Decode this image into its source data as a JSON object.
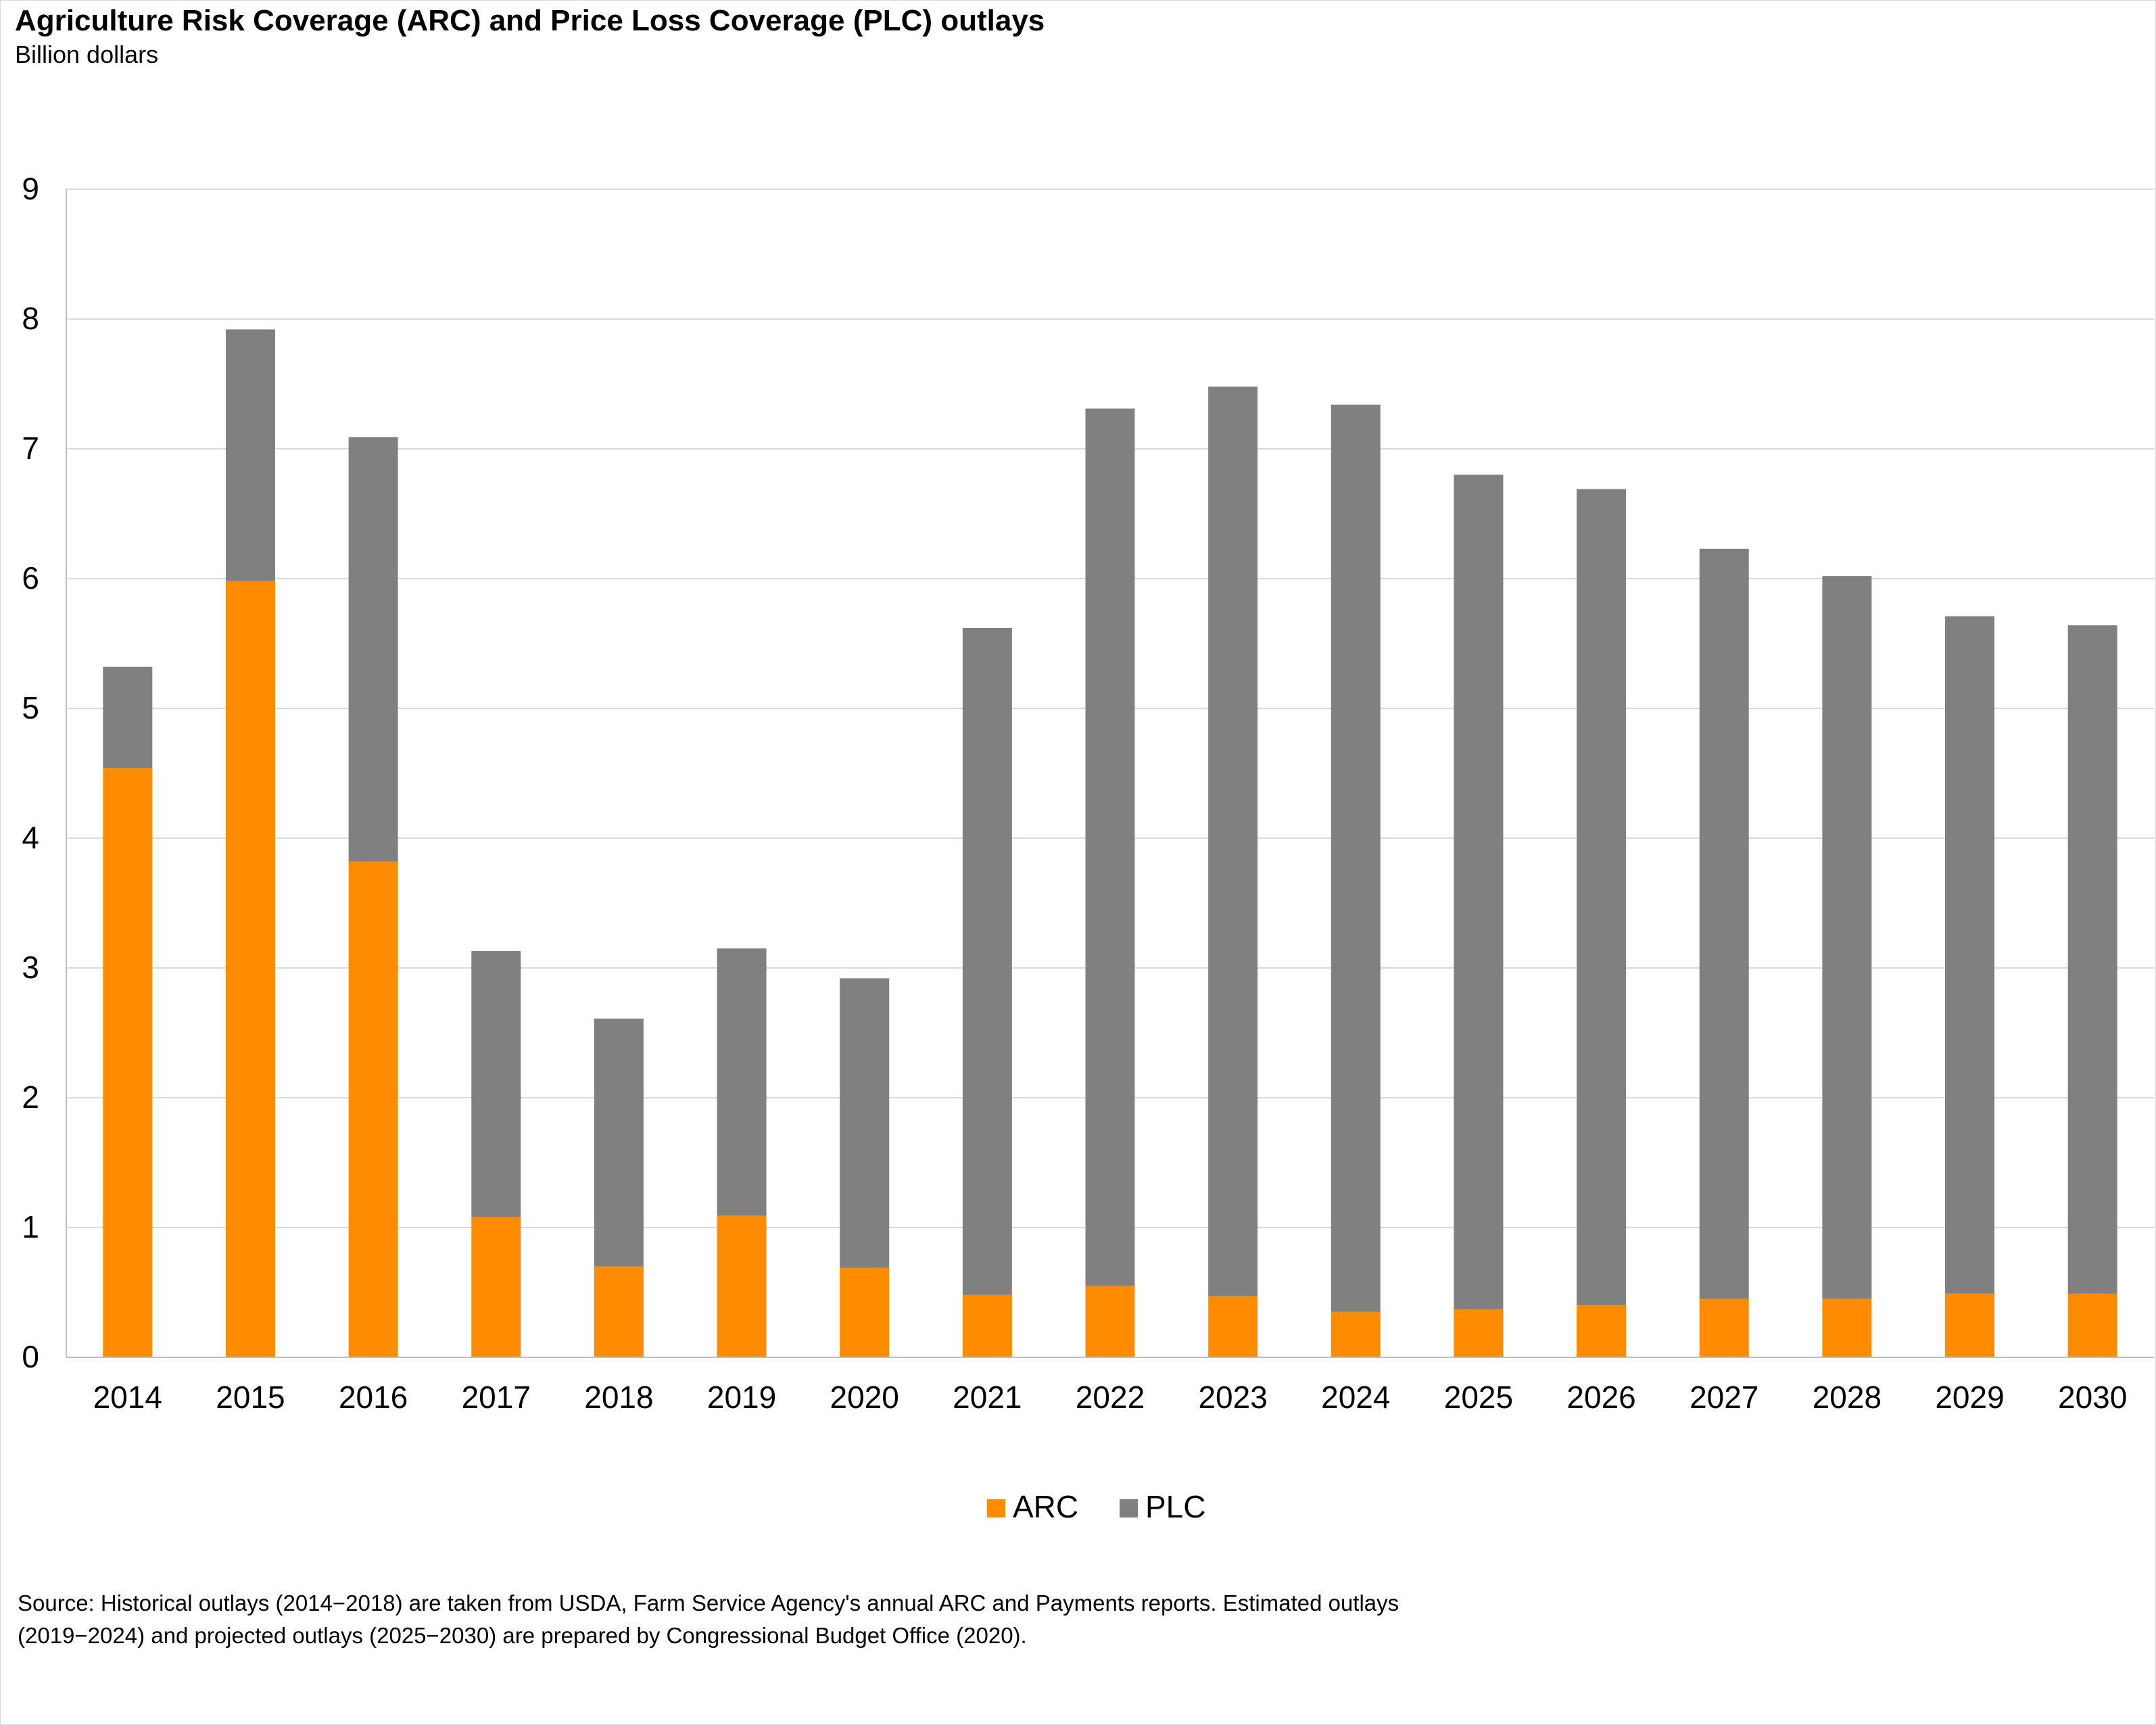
{
  "chart_data": {
    "type": "bar",
    "stacked": true,
    "title": "Agriculture Risk Coverage (ARC) and Price Loss Coverage (PLC) outlays",
    "subtitle": "Billion dollars",
    "xlabel": "",
    "ylabel": "Billion dollars",
    "ylim": [
      0,
      9
    ],
    "yticks": [
      0,
      1,
      2,
      3,
      4,
      5,
      6,
      7,
      8,
      9
    ],
    "grid": true,
    "legend_position": "bottom-center",
    "categories": [
      "2014",
      "2015",
      "2016",
      "2017",
      "2018",
      "2019",
      "2020",
      "2021",
      "2022",
      "2023",
      "2024",
      "2025",
      "2026",
      "2027",
      "2028",
      "2029",
      "2030"
    ],
    "series": [
      {
        "name": "ARC",
        "color": "#ff8c00",
        "values": [
          4.54,
          5.98,
          3.82,
          1.08,
          0.7,
          1.09,
          0.69,
          0.48,
          0.55,
          0.47,
          0.35,
          0.37,
          0.4,
          0.45,
          0.45,
          0.49,
          0.49
        ]
      },
      {
        "name": "PLC",
        "color": "#808080",
        "values": [
          0.78,
          1.94,
          3.27,
          2.05,
          1.91,
          2.06,
          2.23,
          5.14,
          6.76,
          7.01,
          6.99,
          6.43,
          6.29,
          5.78,
          5.57,
          5.22,
          5.15
        ]
      }
    ]
  },
  "source": {
    "line1": "Source: Historical outlays (2014−2018) are taken from USDA, Farm Service Agency's annual ARC and Payments reports.  Estimated outlays",
    "line2": "(2019−2024) and projected outlays (2025−2030)  are prepared by Congressional Budget Office (2020)."
  },
  "colors": {
    "arc": "#ff8c00",
    "plc": "#808080",
    "grid": "#d9d9d9",
    "axis": "#bfbfbf"
  }
}
